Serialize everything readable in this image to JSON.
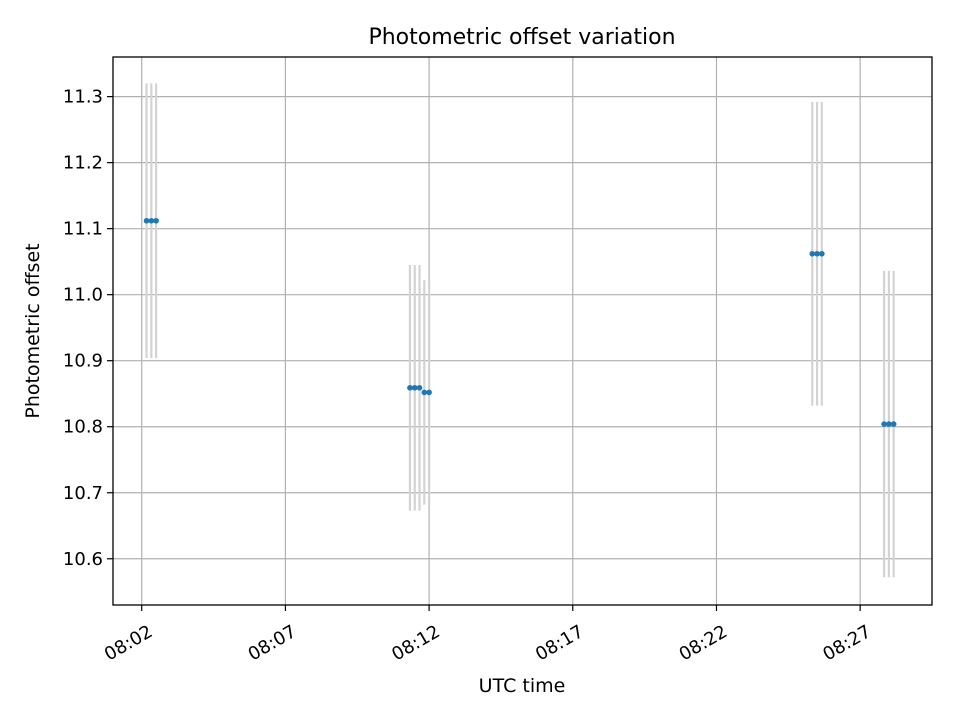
{
  "chart_data": {
    "type": "scatter",
    "title": "Photometric offset variation",
    "xlabel": "UTC time",
    "ylabel": "Photometric offset",
    "x_tick_labels": [
      "08:02",
      "08:07",
      "08:12",
      "08:17",
      "08:22",
      "08:27"
    ],
    "x_tick_minutes": [
      2,
      7,
      12,
      17,
      22,
      27
    ],
    "xlim_minutes": [
      1.0,
      29.5
    ],
    "y_ticks": [
      10.6,
      10.7,
      10.8,
      10.9,
      11.0,
      11.1,
      11.2,
      11.3
    ],
    "y_tick_labels": [
      "10.6",
      "10.7",
      "10.8",
      "10.9",
      "11.0",
      "11.1",
      "11.2",
      "11.3"
    ],
    "ylim": [
      10.53,
      11.36
    ],
    "grid": true,
    "legend": false,
    "series": [
      {
        "marker_color": "#1f77b4",
        "errorbar_color": "#d3d3d3",
        "points": [
          {
            "time": "08:02:10",
            "y": 11.112,
            "err": 0.208
          },
          {
            "time": "08:02:20",
            "y": 11.112,
            "err": 0.208
          },
          {
            "time": "08:02:30",
            "y": 11.112,
            "err": 0.208
          },
          {
            "time": "08:11:20",
            "y": 10.859,
            "err": 0.186
          },
          {
            "time": "08:11:30",
            "y": 10.859,
            "err": 0.186
          },
          {
            "time": "08:11:40",
            "y": 10.859,
            "err": 0.186
          },
          {
            "time": "08:11:50",
            "y": 10.852,
            "err": 0.17
          },
          {
            "time": "08:12:00",
            "y": 10.852,
            "err": 0.17
          },
          {
            "time": "08:25:20",
            "y": 11.062,
            "err": 0.23
          },
          {
            "time": "08:25:30",
            "y": 11.062,
            "err": 0.23
          },
          {
            "time": "08:25:40",
            "y": 11.062,
            "err": 0.23
          },
          {
            "time": "08:27:50",
            "y": 10.804,
            "err": 0.232
          },
          {
            "time": "08:28:00",
            "y": 10.804,
            "err": 0.232
          },
          {
            "time": "08:28:10",
            "y": 10.804,
            "err": 0.232
          }
        ]
      }
    ]
  }
}
